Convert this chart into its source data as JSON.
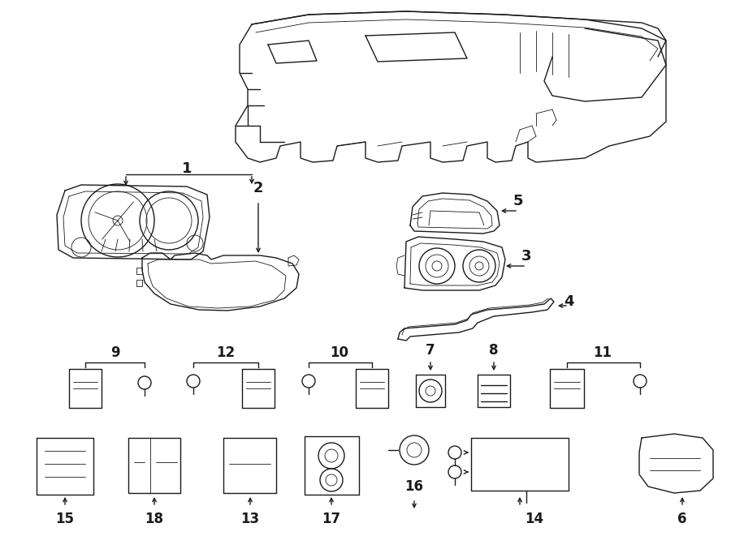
{
  "bg_color": "#ffffff",
  "line_color": "#1a1a1a",
  "fig_width": 9.0,
  "fig_height": 6.61,
  "dpi": 100,
  "lw_main": 1.0,
  "lw_thin": 0.6,
  "lw_thick": 1.4
}
